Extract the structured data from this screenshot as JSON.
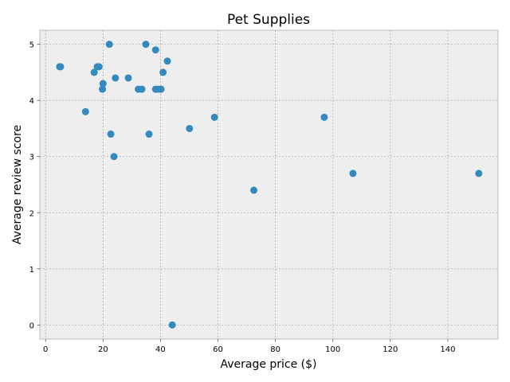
{
  "chart_data": {
    "type": "scatter",
    "title": "Pet Supplies",
    "xlabel": "Average price ($)",
    "ylabel": "Average review score",
    "xlim": [
      -2,
      157.5
    ],
    "ylim": [
      -0.25,
      5.25
    ],
    "xticks": [
      0,
      20,
      40,
      60,
      80,
      100,
      120,
      140
    ],
    "yticks": [
      0,
      1,
      2,
      3,
      4,
      5
    ],
    "grid": true,
    "colors": {
      "background": "#eeeeee",
      "grid": "#b2b2b2",
      "marker": "#348abd",
      "axes_edge": "#bcbcbc"
    },
    "points": [
      {
        "x": 4.9,
        "y": 4.6
      },
      {
        "x": 5.2,
        "y": 4.6
      },
      {
        "x": 13.9,
        "y": 3.8
      },
      {
        "x": 16.9,
        "y": 4.5
      },
      {
        "x": 18.0,
        "y": 4.6
      },
      {
        "x": 18.6,
        "y": 4.6
      },
      {
        "x": 19.8,
        "y": 4.2
      },
      {
        "x": 20.0,
        "y": 4.3
      },
      {
        "x": 22.2,
        "y": 5.0
      },
      {
        "x": 22.7,
        "y": 3.4
      },
      {
        "x": 23.8,
        "y": 3.0
      },
      {
        "x": 24.3,
        "y": 4.4
      },
      {
        "x": 28.8,
        "y": 4.4
      },
      {
        "x": 32.3,
        "y": 4.2
      },
      {
        "x": 33.5,
        "y": 4.2
      },
      {
        "x": 34.9,
        "y": 5.0
      },
      {
        "x": 36.0,
        "y": 3.4
      },
      {
        "x": 38.3,
        "y": 4.9
      },
      {
        "x": 38.3,
        "y": 4.2
      },
      {
        "x": 39.2,
        "y": 4.2
      },
      {
        "x": 40.2,
        "y": 4.2
      },
      {
        "x": 40.9,
        "y": 4.5
      },
      {
        "x": 42.4,
        "y": 4.7
      },
      {
        "x": 44.1,
        "y": 0.0
      },
      {
        "x": 50.1,
        "y": 3.5
      },
      {
        "x": 58.8,
        "y": 3.7
      },
      {
        "x": 72.5,
        "y": 2.4
      },
      {
        "x": 97.0,
        "y": 3.7
      },
      {
        "x": 107.0,
        "y": 2.7
      },
      {
        "x": 150.8,
        "y": 2.7
      }
    ]
  }
}
